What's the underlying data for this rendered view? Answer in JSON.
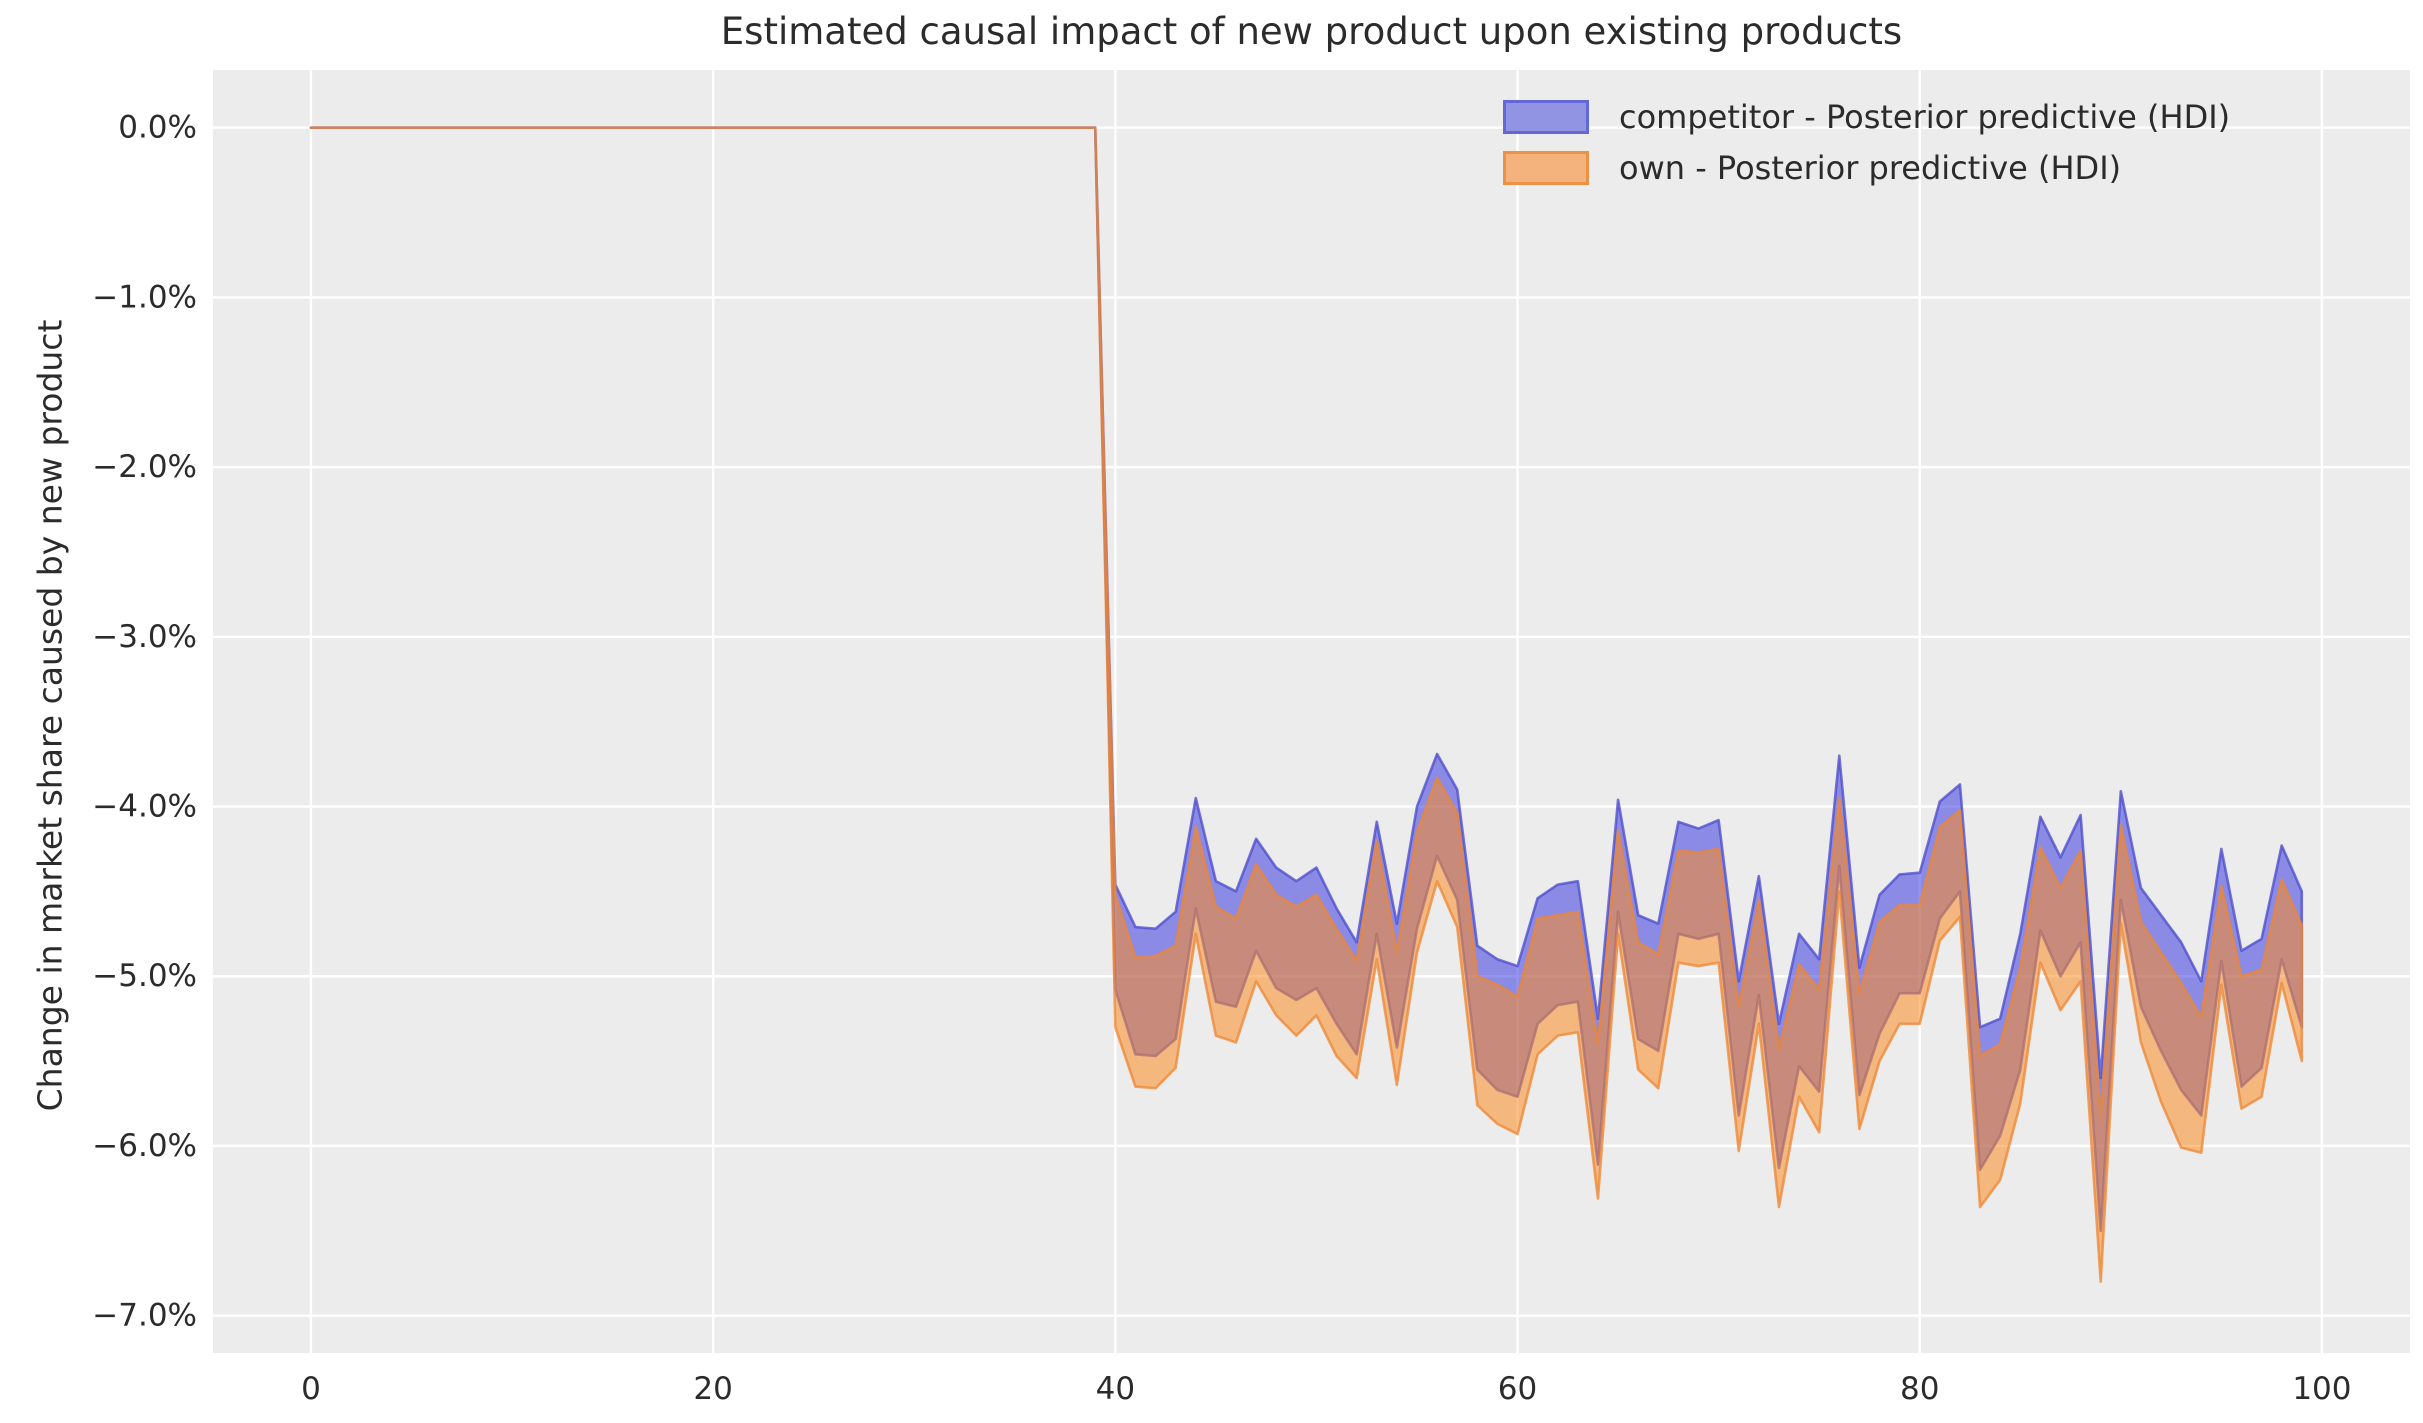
{
  "title": "Estimated causal impact of new product upon existing products",
  "colors": {
    "plot_bg": "#ececec",
    "grid": "#ffffff",
    "text": "#2b2b2b",
    "blue_fill": "#3c3ce0",
    "blue_edge": "#4a4acc",
    "orange_fill": "#fc8c24",
    "orange_edge": "#ee8633",
    "legend_blue_fill": "#9193e3",
    "legend_blue_edge": "#6467d6",
    "legend_orange_fill": "#f4b37d",
    "legend_orange_edge": "#ed9144"
  },
  "chart_data": {
    "type": "area",
    "title": "Estimated causal impact of new product upon existing products",
    "xlabel": "",
    "ylabel": "Change in market share caused by new product",
    "xlim": [
      -4.87,
      104.38
    ],
    "ylim": [
      -7.22,
      0.34
    ],
    "grid": true,
    "legend_position": "upper right",
    "x_ticks": [
      0,
      20,
      40,
      60,
      80,
      100
    ],
    "x_tick_labels": [
      "0",
      "20",
      "40",
      "60",
      "80",
      "100"
    ],
    "y_ticks": [
      0,
      -1,
      -2,
      -3,
      -4,
      -5,
      -6,
      -7
    ],
    "y_tick_labels": [
      "0.0%",
      "−1.0%",
      "−2.0%",
      "−3.0%",
      "−4.0%",
      "−5.0%",
      "−6.0%",
      "−7.0%"
    ],
    "note": "Both series are flat at 0% for x=0..39 (pre-intervention), then drop to a noisy band for x=40..99. Values are percent change; hi/lo are the HDI band edges.",
    "x": [
      0,
      39,
      40,
      41,
      42,
      43,
      44,
      45,
      46,
      47,
      48,
      49,
      50,
      51,
      52,
      53,
      54,
      55,
      56,
      57,
      58,
      59,
      60,
      61,
      62,
      63,
      64,
      65,
      66,
      67,
      68,
      69,
      70,
      71,
      72,
      73,
      74,
      75,
      76,
      77,
      78,
      79,
      80,
      81,
      82,
      83,
      84,
      85,
      86,
      87,
      88,
      89,
      90,
      91,
      92,
      93,
      94,
      95,
      96,
      97,
      98,
      99
    ],
    "series": [
      {
        "name": "competitor - Posterior predictive (HDI)",
        "fill": "#3c3ce0",
        "edge": "#4a4acc",
        "hi": [
          0,
          0,
          -4.46,
          -4.71,
          -4.72,
          -4.62,
          -3.95,
          -4.44,
          -4.5,
          -4.19,
          -4.36,
          -4.44,
          -4.36,
          -4.6,
          -4.8,
          -4.09,
          -4.69,
          -4.0,
          -3.69,
          -3.9,
          -4.82,
          -4.9,
          -4.94,
          -4.54,
          -4.46,
          -4.44,
          -5.25,
          -3.96,
          -4.64,
          -4.69,
          -4.09,
          -4.13,
          -4.08,
          -5.03,
          -4.41,
          -5.28,
          -4.75,
          -4.9,
          -3.7,
          -4.95,
          -4.52,
          -4.4,
          -4.39,
          -3.97,
          -3.87,
          -5.3,
          -5.25,
          -4.75,
          -4.06,
          -4.3,
          -4.05,
          -5.6,
          -3.91,
          -4.48,
          -4.64,
          -4.8,
          -5.03,
          -4.25,
          -4.85,
          -4.78,
          -4.23,
          -4.5
        ],
        "lo": [
          0,
          0,
          -5.08,
          -5.46,
          -5.47,
          -5.37,
          -4.6,
          -5.15,
          -5.18,
          -4.85,
          -5.07,
          -5.14,
          -5.07,
          -5.28,
          -5.46,
          -4.75,
          -5.42,
          -4.72,
          -4.29,
          -4.55,
          -5.55,
          -5.67,
          -5.71,
          -5.28,
          -5.17,
          -5.15,
          -6.11,
          -4.62,
          -5.37,
          -5.44,
          -4.75,
          -4.78,
          -4.75,
          -5.82,
          -5.11,
          -6.13,
          -5.53,
          -5.68,
          -4.35,
          -5.7,
          -5.34,
          -5.1,
          -5.1,
          -4.66,
          -4.5,
          -6.14,
          -5.94,
          -5.55,
          -4.73,
          -5.0,
          -4.8,
          -6.5,
          -4.55,
          -5.18,
          -5.44,
          -5.67,
          -5.82,
          -4.91,
          -5.65,
          -5.54,
          -4.9,
          -5.3
        ]
      },
      {
        "name": "own - Posterior predictive (HDI)",
        "fill": "#fc8c24",
        "edge": "#ee8633",
        "hi": [
          0,
          0,
          -4.52,
          -4.89,
          -4.88,
          -4.82,
          -4.12,
          -4.59,
          -4.66,
          -4.34,
          -4.52,
          -4.59,
          -4.52,
          -4.72,
          -4.91,
          -4.2,
          -4.86,
          -4.15,
          -3.83,
          -4.04,
          -5.0,
          -5.05,
          -5.12,
          -4.66,
          -4.64,
          -4.62,
          -5.4,
          -4.14,
          -4.8,
          -4.87,
          -4.26,
          -4.27,
          -4.25,
          -5.18,
          -4.55,
          -5.43,
          -4.93,
          -5.08,
          -3.95,
          -5.1,
          -4.68,
          -4.58,
          -4.58,
          -4.12,
          -4.02,
          -5.47,
          -5.4,
          -4.95,
          -4.24,
          -4.48,
          -4.26,
          -5.83,
          -4.11,
          -4.68,
          -4.86,
          -5.04,
          -5.24,
          -4.47,
          -5.0,
          -4.96,
          -4.43,
          -4.7
        ],
        "lo": [
          0,
          0,
          -5.3,
          -5.65,
          -5.66,
          -5.54,
          -4.75,
          -5.35,
          -5.39,
          -5.03,
          -5.23,
          -5.35,
          -5.23,
          -5.47,
          -5.6,
          -4.9,
          -5.64,
          -4.86,
          -4.44,
          -4.71,
          -5.76,
          -5.87,
          -5.93,
          -5.46,
          -5.35,
          -5.33,
          -6.31,
          -4.75,
          -5.55,
          -5.66,
          -4.92,
          -4.94,
          -4.92,
          -6.03,
          -5.28,
          -6.36,
          -5.71,
          -5.92,
          -4.5,
          -5.9,
          -5.5,
          -5.28,
          -5.28,
          -4.79,
          -4.65,
          -6.36,
          -6.2,
          -5.75,
          -4.92,
          -5.2,
          -5.03,
          -6.8,
          -4.69,
          -5.39,
          -5.74,
          -6.01,
          -6.04,
          -5.05,
          -5.78,
          -5.71,
          -5.04,
          -5.5
        ]
      }
    ]
  },
  "legend": {
    "items": [
      {
        "label": "competitor - Posterior predictive (HDI)"
      },
      {
        "label": "own - Posterior predictive (HDI)"
      }
    ]
  }
}
